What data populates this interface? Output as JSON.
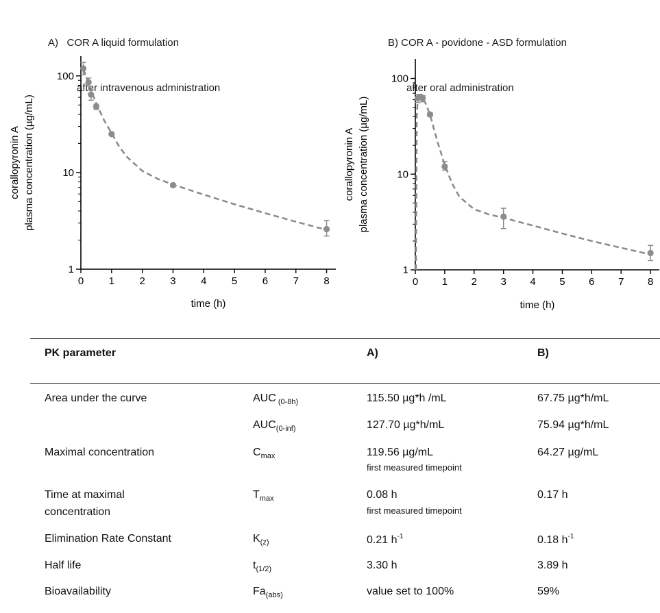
{
  "panels": {
    "a": {
      "title_line1": "A)   COR A liquid formulation",
      "title_line2": "after intravenous administration"
    },
    "b": {
      "title_line1": "B) COR A - povidone - ASD formulation",
      "title_line2": "after oral administration"
    }
  },
  "chart_data": [
    {
      "type": "line",
      "panel": "A",
      "title": "",
      "xlabel": "time (h)",
      "ylabel_line1": "corallopyronin A",
      "ylabel_line2": "plasma concentration (µg/mL)",
      "xlim": [
        0,
        8.3
      ],
      "ylim": [
        1,
        160
      ],
      "yscale": "log",
      "xticks": [
        0,
        1,
        2,
        3,
        4,
        5,
        6,
        7,
        8
      ],
      "yticks": [
        1,
        10,
        100
      ],
      "ytick_labels": [
        "1",
        "10",
        "100"
      ],
      "markers": {
        "x": [
          0.08,
          0.25,
          0.33,
          0.5,
          1,
          3,
          8
        ],
        "y": [
          119.56,
          86,
          64,
          48,
          25,
          7.4,
          2.6
        ],
        "err_low": [
          103,
          78,
          56,
          45,
          24,
          7.1,
          2.2
        ],
        "err_high": [
          138,
          95,
          72,
          51,
          26,
          7.7,
          3.2
        ]
      },
      "fit": {
        "x": [
          0.08,
          0.25,
          0.5,
          0.75,
          1,
          1.25,
          1.5,
          2,
          2.5,
          3,
          4,
          5,
          6,
          7,
          8
        ],
        "y": [
          118,
          84,
          52,
          35,
          25.5,
          18.5,
          14.5,
          10.4,
          8.6,
          7.5,
          5.9,
          4.7,
          3.8,
          3.1,
          2.55
        ]
      },
      "colors": {
        "marker": "#8c8c8c",
        "line": "#8c8c8c"
      }
    },
    {
      "type": "line",
      "panel": "B",
      "title": "",
      "xlabel": "time (h)",
      "ylabel_line1": "corallopyronin A",
      "ylabel_line2": "plasma concentration (µg/mL)",
      "xlim": [
        0,
        8.3
      ],
      "ylim": [
        1,
        160
      ],
      "yscale": "log",
      "xticks": [
        0,
        1,
        2,
        3,
        4,
        5,
        6,
        7,
        8
      ],
      "yticks": [
        1,
        10,
        100
      ],
      "ytick_labels": [
        "1",
        "10",
        "100"
      ],
      "markers": {
        "x": [
          0.08,
          0.17,
          0.25,
          0.5,
          1,
          3,
          8
        ],
        "y": [
          62,
          64.27,
          62,
          42,
          12,
          3.6,
          1.5
        ],
        "err_low": [
          56,
          60,
          57,
          40,
          11,
          2.7,
          1.25
        ],
        "err_high": [
          68,
          68,
          66,
          44,
          13.5,
          4.4,
          1.8
        ]
      },
      "fit": {
        "x": [
          0.02,
          0.05,
          0.08,
          0.17,
          0.25,
          0.35,
          0.5,
          0.75,
          1,
          1.25,
          1.5,
          2,
          2.5,
          3,
          4,
          5,
          6,
          7,
          8
        ],
        "y": [
          1,
          40,
          58,
          64,
          62,
          55,
          42,
          22,
          12.5,
          8,
          5.8,
          4.3,
          3.8,
          3.5,
          2.9,
          2.4,
          2,
          1.7,
          1.45
        ]
      },
      "colors": {
        "marker": "#8c8c8c",
        "line": "#8c8c8c"
      }
    }
  ],
  "table": {
    "header": {
      "param": "PK parameter",
      "a": "A)",
      "b": "B)"
    },
    "rows": [
      {
        "param": "Area under the curve",
        "sym_main": "AUC",
        "sym_sub": " (0-8h)",
        "a": "115.50 µg*h /mL",
        "b": "67.75 µg*h/mL"
      },
      {
        "param": "",
        "sym_main": "AUC",
        "sym_sub": "(0-inf)",
        "a": "127.70 µg*h/mL",
        "b": "75.94 µg*h/mL"
      },
      {
        "param": "Maximal concentration",
        "sym_main": "C",
        "sym_sub": "max",
        "a": "119.56 µg/mL",
        "a_note": "first measured timepoint",
        "b": "64.27 µg/mL"
      },
      {
        "param_line1": "Time at maximal",
        "param_line2": "concentration",
        "sym_main": "T",
        "sym_sub": "max",
        "a": "0.08 h",
        "a_note": "first measured timepoint",
        "b": "0.17 h"
      },
      {
        "param": "Elimination Rate Constant",
        "sym_main": "K",
        "sym_sub": "(z)",
        "a_main": "0.21 h",
        "a_sup": "-1",
        "b_main": "0.18 h",
        "b_sup": "-1"
      },
      {
        "param": "Half life",
        "sym_main": "t",
        "sym_sub": "(1/2)",
        "a": "3.30 h",
        "b": "3.89 h"
      },
      {
        "param": "Bioavailability",
        "sym_main": "Fa",
        "sym_sub": "(abs)",
        "a": "value set to 100%",
        "b": "59%"
      }
    ]
  }
}
